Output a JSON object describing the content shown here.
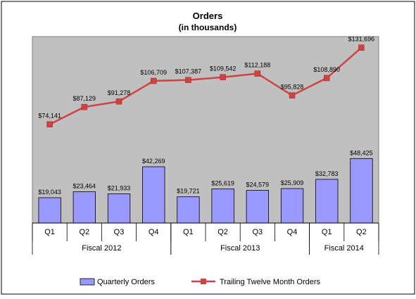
{
  "chart_data": {
    "type": "bar",
    "title_line1": "Orders",
    "title_line2": "(in thousands)",
    "categories": [
      "Q1",
      "Q2",
      "Q3",
      "Q4",
      "Q1",
      "Q2",
      "Q3",
      "Q4",
      "Q1",
      "Q2"
    ],
    "groups": [
      {
        "label": "Fiscal 2012",
        "count": 4
      },
      {
        "label": "Fiscal 2013",
        "count": 4
      },
      {
        "label": "Fiscal 2014",
        "count": 2
      }
    ],
    "ylim": [
      0,
      140000
    ],
    "grid": false,
    "legend_position": "bottom",
    "series": [
      {
        "name": "Quarterly Orders",
        "kind": "bar",
        "color": "#9999ff",
        "values": [
          19043,
          23464,
          21933,
          42269,
          19721,
          25619,
          24579,
          25909,
          32783,
          48425
        ],
        "labels": [
          "$19,043",
          "$23,464",
          "$21,933",
          "$42,269",
          "$19,721",
          "$25,619",
          "$24,579",
          "$25,909",
          "$32,783",
          "$48,425"
        ]
      },
      {
        "name": "Trailing Twelve Month Orders",
        "kind": "line",
        "color": "#cc4444",
        "values": [
          74141,
          87129,
          91278,
          106709,
          107387,
          109542,
          112188,
          95828,
          108890,
          131696
        ],
        "labels": [
          "$74,141",
          "$87,129",
          "$91,278",
          "$106,709",
          "$107,387",
          "$109,542",
          "$112,188",
          "$95,828",
          "$108,890",
          "$131,696"
        ]
      }
    ],
    "plot_background": "#c0c0c0"
  }
}
